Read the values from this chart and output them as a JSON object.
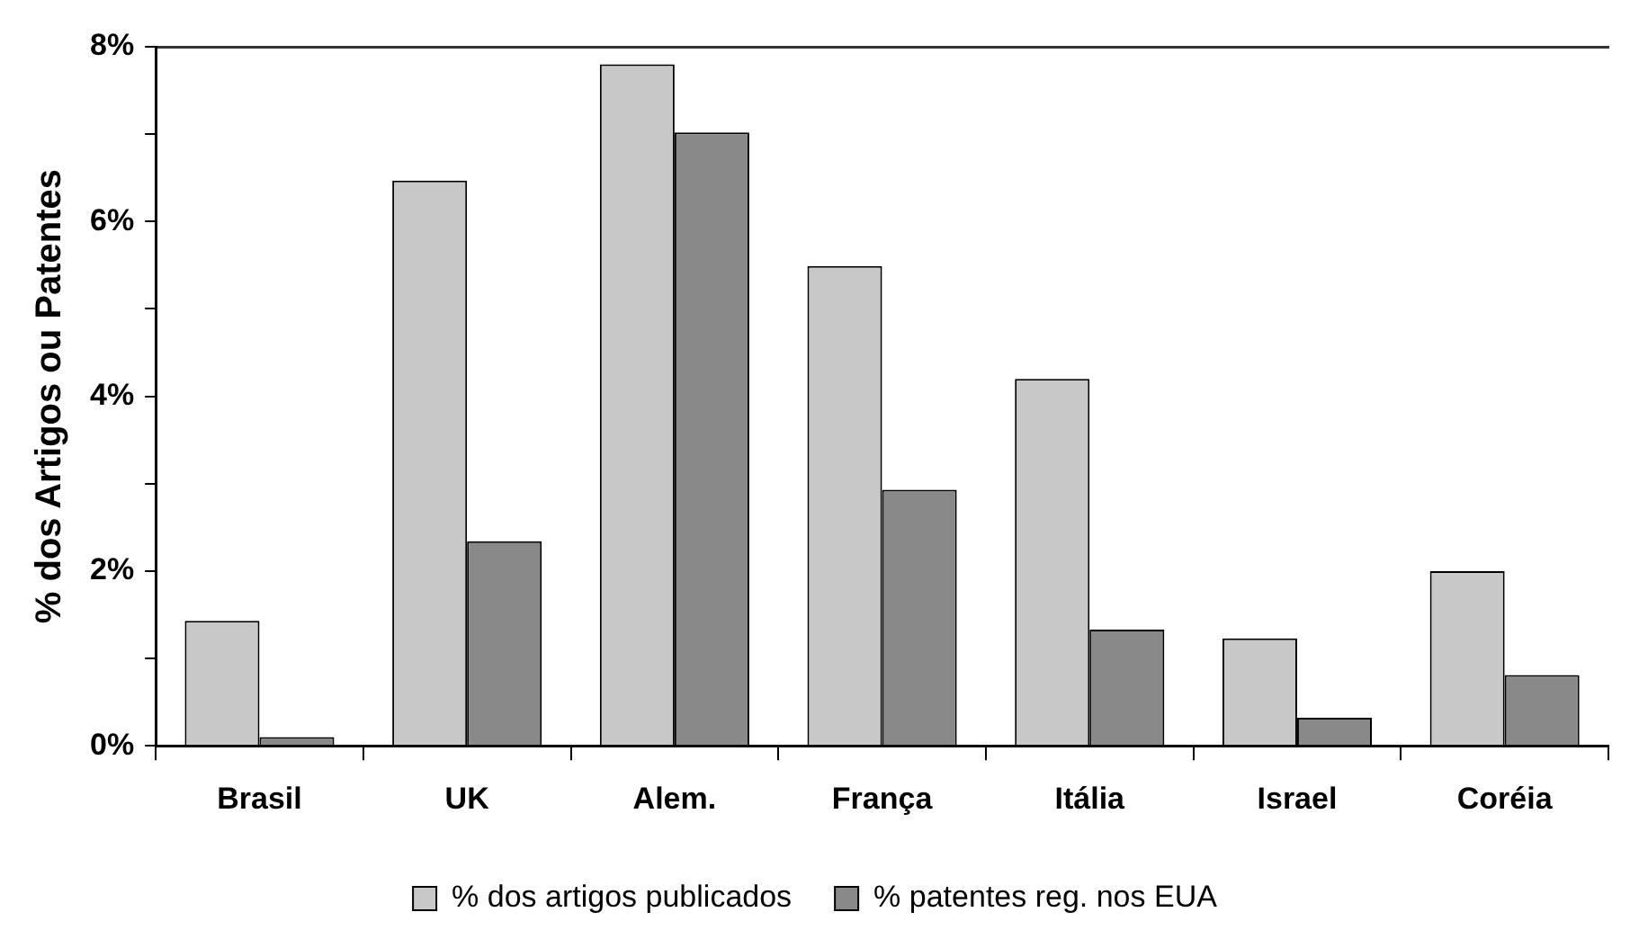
{
  "chart_data": {
    "type": "bar",
    "ylabel": "% dos Artigos ou Patentes",
    "categories": [
      "Brasil",
      "UK",
      "Alem.",
      "França",
      "Itália",
      "Israel",
      "Coréia"
    ],
    "series": [
      {
        "name": "% dos artigos publicados",
        "color": "#c8c8c8",
        "values": [
          1.43,
          6.47,
          7.8,
          5.49,
          4.2,
          1.23,
          2.0
        ]
      },
      {
        "name": "% patentes reg. nos EUA",
        "color": "#898989",
        "values": [
          0.1,
          2.34,
          7.02,
          2.93,
          1.33,
          0.32,
          0.81
        ]
      }
    ],
    "ylim": [
      0,
      8
    ],
    "yticks": [
      {
        "value": 0,
        "label": "0%"
      },
      {
        "value": 1,
        "label": null
      },
      {
        "value": 2,
        "label": "2%"
      },
      {
        "value": 3,
        "label": null
      },
      {
        "value": 4,
        "label": "4%"
      },
      {
        "value": 5,
        "label": null
      },
      {
        "value": 6,
        "label": "6%"
      },
      {
        "value": 7,
        "label": null
      },
      {
        "value": 8,
        "label": "8%"
      }
    ],
    "grid": false,
    "legend": "bottom"
  }
}
